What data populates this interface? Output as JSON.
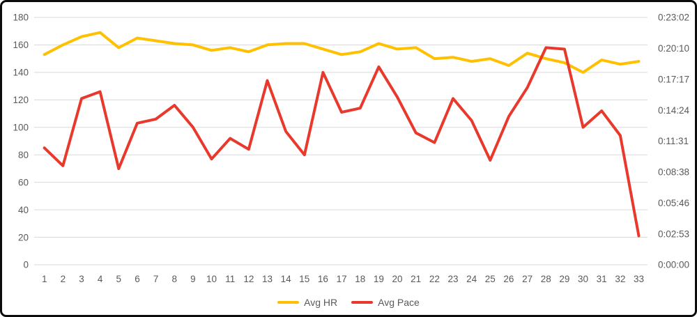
{
  "chart_data": {
    "type": "line",
    "title": "",
    "xlabel": "",
    "ylabel_left": "",
    "ylabel_right": "",
    "grid": true,
    "legend_position": "bottom",
    "background_color": "#ffffff",
    "frame_border_color": "#0b0b0b",
    "gridline_color": "#d9d9d9",
    "axis_text_color": "#595959",
    "x": [
      1,
      2,
      3,
      4,
      5,
      6,
      7,
      8,
      9,
      10,
      11,
      12,
      13,
      14,
      15,
      16,
      17,
      18,
      19,
      20,
      21,
      22,
      23,
      24,
      25,
      26,
      27,
      28,
      29,
      30,
      31,
      32,
      33
    ],
    "left_axis": {
      "min": 0,
      "max": 180,
      "step": 20,
      "tick_labels": [
        "0",
        "20",
        "40",
        "60",
        "80",
        "100",
        "120",
        "140",
        "160",
        "180"
      ]
    },
    "right_axis": {
      "unit": "h:mm:ss",
      "min_seconds": 0,
      "max_seconds": 1382,
      "tick_labels_bottom_to_top": [
        "0:00:00",
        "0:02:53",
        "0:05:46",
        "0:08:38",
        "0:11:31",
        "0:14:24",
        "0:17:17",
        "0:20:10",
        "0:23:02"
      ]
    },
    "series": [
      {
        "name": "Avg HR",
        "axis": "left",
        "color": "#FFC000",
        "values": [
          153,
          160,
          166,
          169,
          158,
          165,
          163,
          161,
          160,
          156,
          158,
          155,
          160,
          161,
          161,
          157,
          153,
          155,
          161,
          157,
          158,
          150,
          151,
          148,
          150,
          145,
          154,
          150,
          147,
          140,
          149,
          146,
          148
        ]
      },
      {
        "name": "Avg Pace",
        "axis": "right",
        "color": "#E8392C",
        "values_seconds": [
          653,
          553,
          929,
          967,
          537,
          791,
          814,
          891,
          768,
          591,
          706,
          645,
          1029,
          745,
          614,
          1075,
          852,
          875,
          1106,
          937,
          737,
          683,
          929,
          806,
          584,
          829,
          990,
          1213,
          1205,
          768,
          860,
          722,
          161
        ],
        "values_hms": [
          "0:10:53",
          "0:09:13",
          "0:15:29",
          "0:16:07",
          "0:08:57",
          "0:13:11",
          "0:13:34",
          "0:14:51",
          "0:12:48",
          "0:09:51",
          "0:11:46",
          "0:10:45",
          "0:17:09",
          "0:12:25",
          "0:10:14",
          "0:17:55",
          "0:14:12",
          "0:14:35",
          "0:18:26",
          "0:15:37",
          "0:12:17",
          "0:11:23",
          "0:15:29",
          "0:13:26",
          "0:09:44",
          "0:13:49",
          "0:16:30",
          "0:20:13",
          "0:20:05",
          "0:12:48",
          "0:14:20",
          "0:12:02",
          "0:02:41"
        ]
      }
    ]
  },
  "legend": {
    "items": [
      {
        "label": "Avg HR",
        "color": "#FFC000"
      },
      {
        "label": "Avg Pace",
        "color": "#E8392C"
      }
    ]
  }
}
